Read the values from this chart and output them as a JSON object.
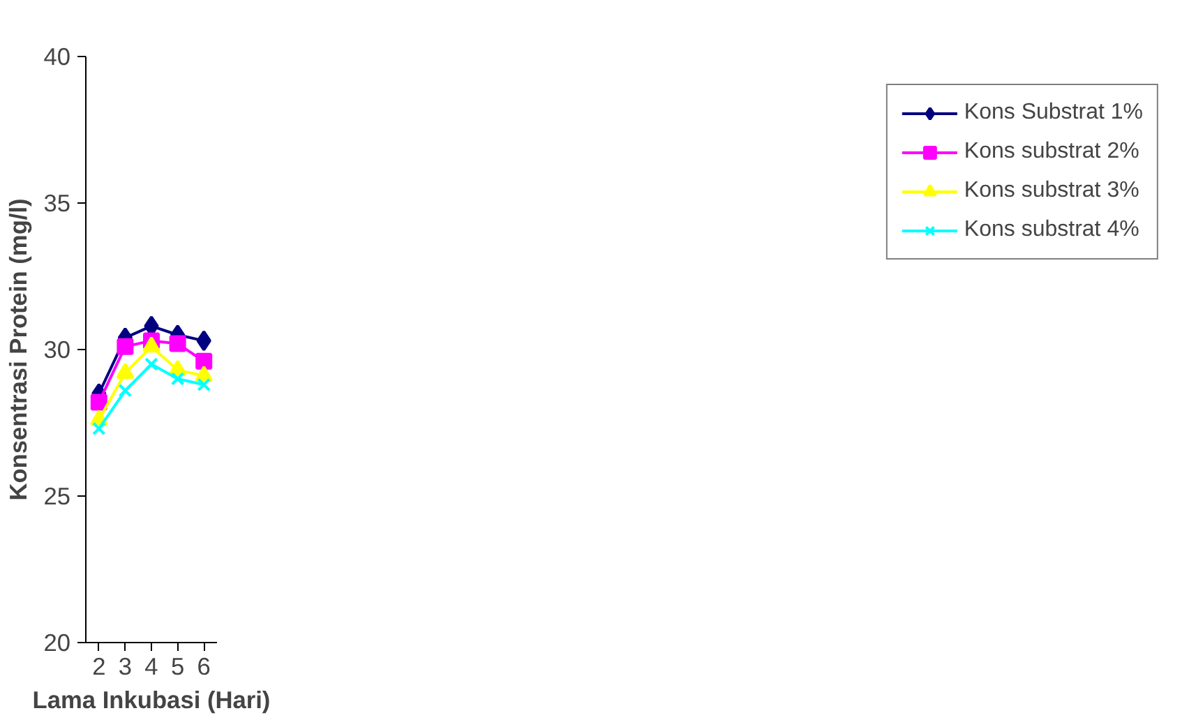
{
  "chart_data": {
    "type": "line",
    "xlabel": "Lama Inkubasi (Hari)",
    "ylabel": "Konsentrasi Protein (mg/l)",
    "categories": [
      "2",
      "3",
      "4",
      "5",
      "6"
    ],
    "series": [
      {
        "name": "Kons Substrat 1%",
        "color": "#000080",
        "marker": "diamond",
        "values": [
          28.5,
          30.4,
          30.8,
          30.5,
          30.3
        ]
      },
      {
        "name": "Kons substrat 2%",
        "color": "#ff00ff",
        "marker": "square",
        "values": [
          28.2,
          30.1,
          30.3,
          30.2,
          29.6
        ]
      },
      {
        "name": "Kons substrat 3%",
        "color": "#ffff00",
        "marker": "triangle",
        "values": [
          27.6,
          29.2,
          30.1,
          29.3,
          29.1
        ]
      },
      {
        "name": "Kons substrat 4%",
        "color": "#00ffff",
        "marker": "cross",
        "values": [
          27.3,
          28.6,
          29.5,
          29.0,
          28.8
        ]
      }
    ],
    "ylim": [
      20,
      40
    ],
    "yticks": [
      20,
      25,
      30,
      35,
      40
    ],
    "grid": false,
    "legend": "right",
    "line_style": "solid"
  }
}
